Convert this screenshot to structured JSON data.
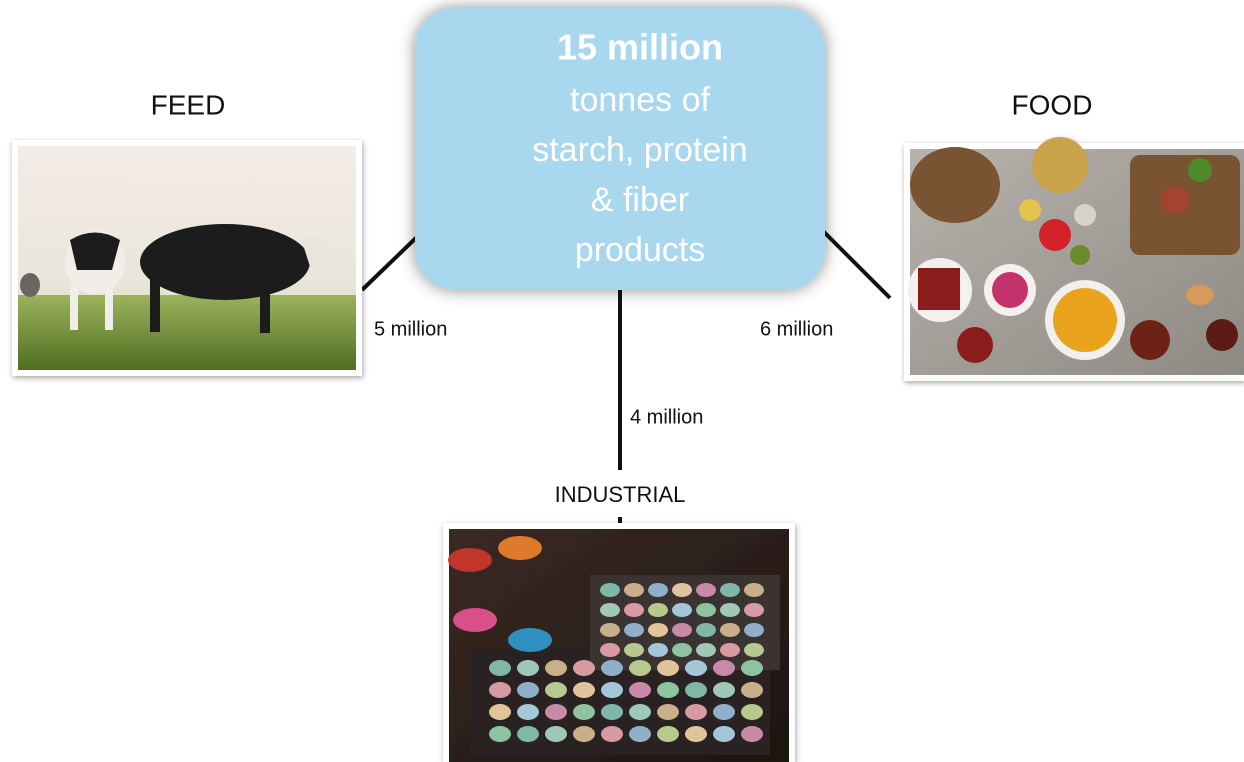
{
  "center": {
    "headline": "15 million",
    "lines": [
      "tonnes of",
      "starch, protein",
      "& fiber",
      "products"
    ]
  },
  "branches": [
    {
      "label": "FEED",
      "amount": "5 million"
    },
    {
      "label": "FOOD",
      "amount": "6 million"
    },
    {
      "label": "INDUSTRIAL",
      "amount": "4 million"
    }
  ]
}
